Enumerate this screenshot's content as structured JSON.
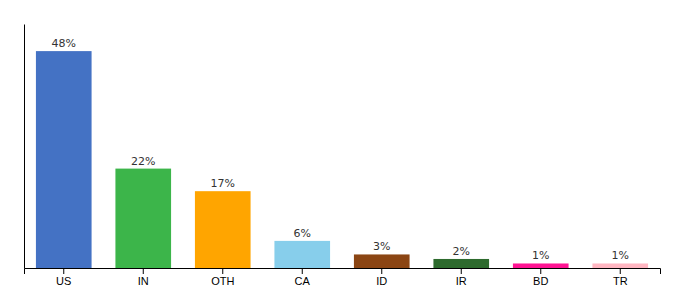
{
  "chart_data": {
    "type": "bar",
    "categories": [
      "US",
      "IN",
      "OTH",
      "CA",
      "ID",
      "IR",
      "BD",
      "TR"
    ],
    "values": [
      48,
      22,
      17,
      6,
      3,
      2,
      1,
      1
    ],
    "value_labels": [
      "48%",
      "22%",
      "17%",
      "6%",
      "3%",
      "2%",
      "1%",
      "1%"
    ],
    "colors": [
      "#4472C4",
      "#3CB54A",
      "#FFA500",
      "#87CEEB",
      "#8B4513",
      "#2D6A2D",
      "#FF1493",
      "#FFB6C1"
    ],
    "ylim": [
      0,
      54
    ],
    "data_labels": true,
    "tick_labels": "x",
    "grid": false
  }
}
